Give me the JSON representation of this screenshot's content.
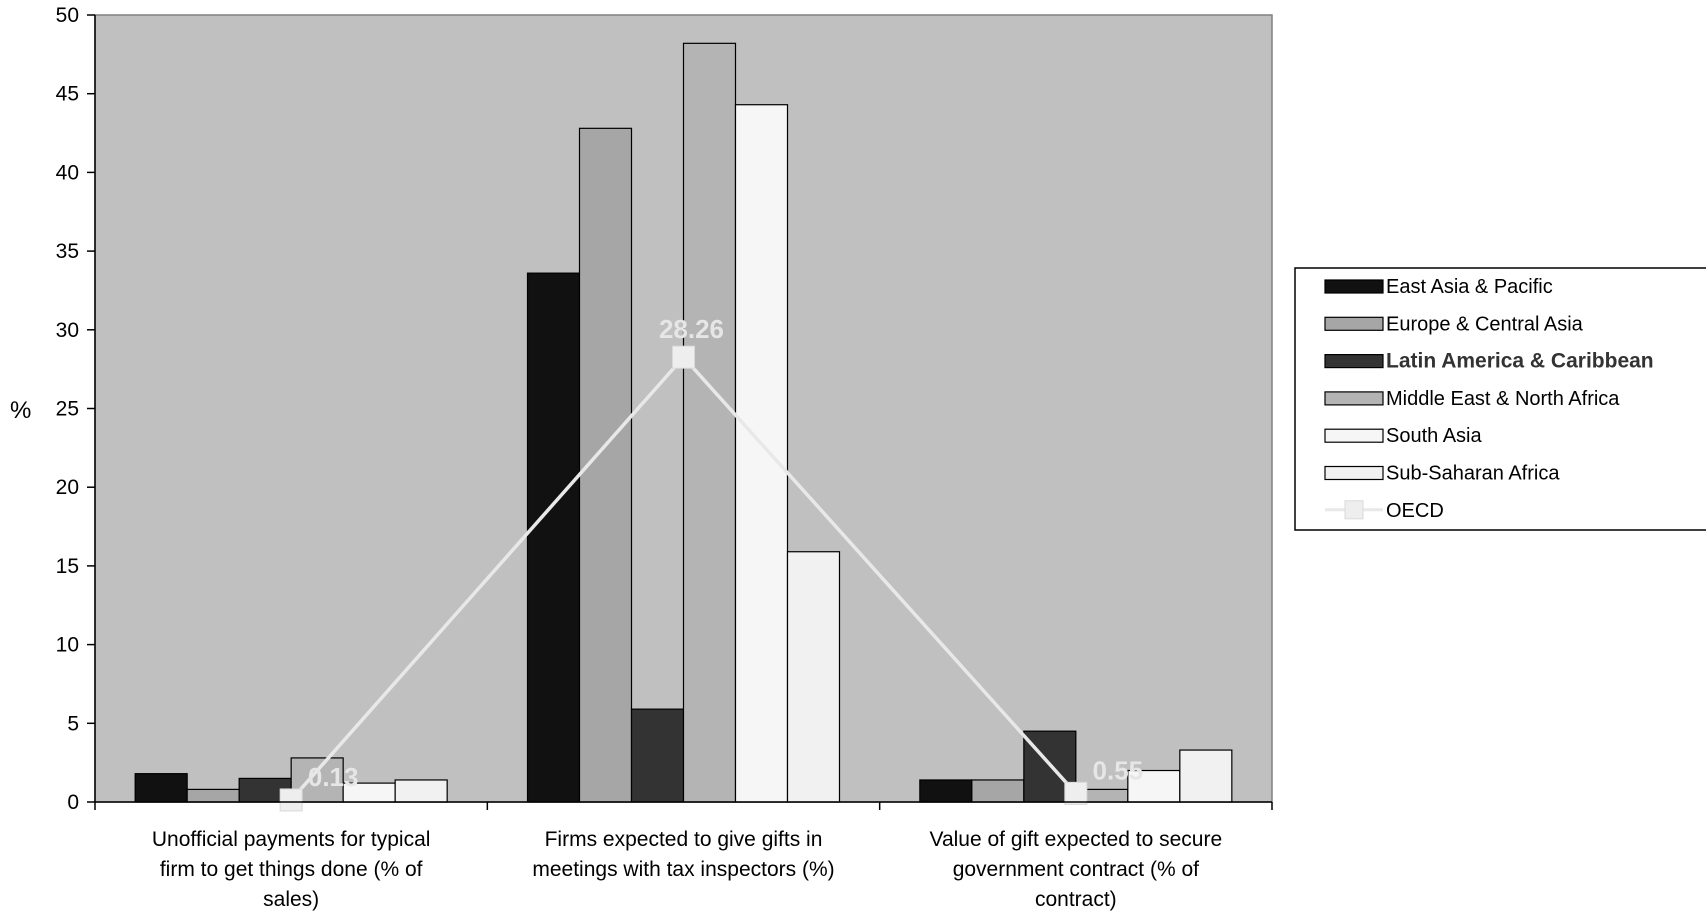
{
  "chart_data": {
    "type": "bar",
    "ylabel": "%",
    "ylim": [
      0,
      50
    ],
    "yticks": [
      0,
      5,
      10,
      15,
      20,
      25,
      30,
      35,
      40,
      45,
      50
    ],
    "categories": [
      [
        "Unofficial payments for typical",
        "firm to get things done (% of",
        "sales)"
      ],
      [
        "Firms expected to give gifts in",
        "meetings with tax inspectors (%)"
      ],
      [
        "Value of gift expected to secure",
        "government contract (% of",
        "contract)"
      ]
    ],
    "series": [
      {
        "name": "East Asia & Pacific",
        "values": [
          1.8,
          33.6,
          1.4
        ],
        "color": "#111111"
      },
      {
        "name": "Europe & Central Asia",
        "values": [
          0.8,
          42.8,
          1.4
        ],
        "color": "#a6a6a6"
      },
      {
        "name": "Latin America & Caribbean",
        "values": [
          1.5,
          5.9,
          4.5
        ],
        "color": "#333333"
      },
      {
        "name": "Middle East & North Africa",
        "values": [
          2.8,
          48.2,
          0.8
        ],
        "color": "#b4b4b4"
      },
      {
        "name": "South Asia",
        "values": [
          1.2,
          44.3,
          2.0
        ],
        "color": "#f6f6f6"
      },
      {
        "name": "Sub-Saharan Africa",
        "values": [
          1.4,
          15.9,
          3.3
        ],
        "color": "#f1f1f1"
      }
    ],
    "line_series": {
      "name": "OECD",
      "values": [
        0.13,
        28.26,
        0.55
      ],
      "labels": [
        "0.13",
        "28.26",
        "0.55"
      ],
      "color": "#e8e8e8"
    },
    "plot_background": "#c0c0c0",
    "legend_position": "right"
  }
}
